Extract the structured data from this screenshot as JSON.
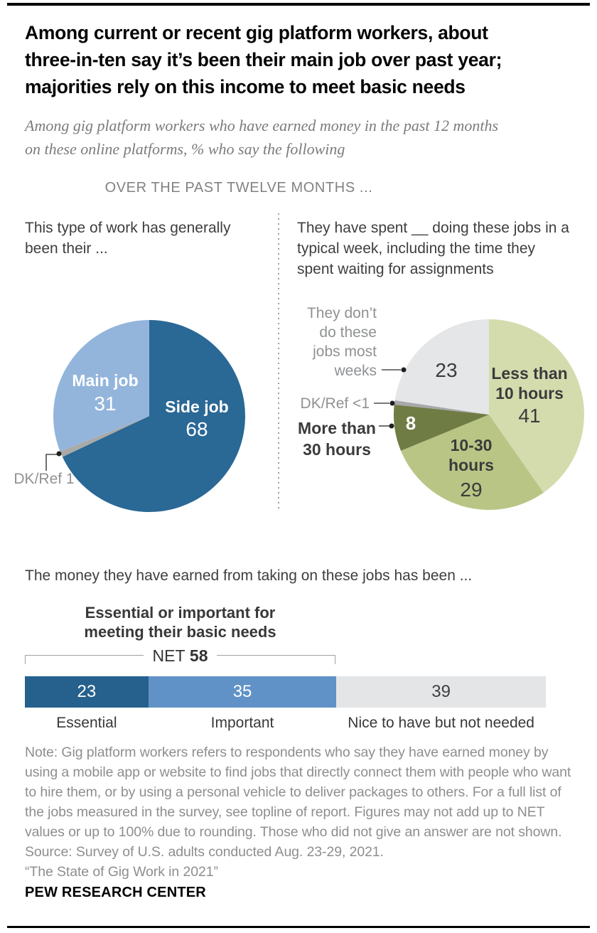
{
  "header": {
    "title_lines": [
      "Among current or recent gig platform workers, about",
      "three-in-ten say it’s been their main job over past year;",
      "majorities rely on this income to meet basic needs"
    ],
    "subtitle_lines": [
      "Among gig platform workers who have earned money in the past 12 months",
      "on these online platforms, % who say the following"
    ],
    "section_label": "OVER THE PAST TWELVE MONTHS ..."
  },
  "colors": {
    "pie_dark_blue": "#2a6896",
    "pie_light_blue": "#93b5dc",
    "bar_dark_blue": "#25618c",
    "bar_medium_blue": "#6092c7",
    "light_gray": "#e5e6e7",
    "gray_sliver": "#a7a8aa",
    "sage_light": "#d4dcae",
    "sage_medium": "#b9c585",
    "olive_dark": "#6f7c44"
  },
  "chart_data": [
    {
      "type": "pie",
      "title_lines": [
        "This type of work has generally",
        "been their ..."
      ],
      "start": "top",
      "direction": "clockwise",
      "slices": [
        {
          "label": "Side job",
          "value": 68,
          "display": "68",
          "color": "#2a6896"
        },
        {
          "label": "DK/Ref",
          "value": 1,
          "display": "1",
          "color": "#a9aaa8"
        },
        {
          "label": "Main job",
          "value": 31,
          "display": "31",
          "color": "#93b5dc"
        }
      ],
      "outside_label": "DK/Ref 1"
    },
    {
      "type": "pie",
      "title_lines": [
        "They have spent __ doing these jobs in a",
        "typical week, including the time they",
        "spent waiting for assignments"
      ],
      "start": "top",
      "direction": "clockwise",
      "slices": [
        {
          "label": "Less than 10 hours",
          "value": 41,
          "display": "41",
          "color": "#d4dcae"
        },
        {
          "label": "10-30 hours",
          "value": 29,
          "display": "29",
          "color": "#b9c585"
        },
        {
          "label": "More than 30 hours",
          "value": 8,
          "display": "8",
          "color": "#6f7c44"
        },
        {
          "label": "DK/Ref",
          "value": 0.75,
          "display": "<1",
          "color": "#a7a8aa"
        },
        {
          "label": "They don’t do these jobs most weeks",
          "value": 23,
          "display": "23",
          "color": "#e5e6e7"
        }
      ],
      "labels": {
        "less_than_lines": [
          "Less than",
          "10 hours"
        ],
        "mid_lines": [
          "10-30",
          "hours"
        ],
        "more_lines": [
          "More than",
          "30 hours"
        ],
        "dkref": "DK/Ref <1",
        "none_lines": [
          "They don’t",
          "do these",
          "jobs most",
          "weeks"
        ]
      }
    },
    {
      "type": "stacked_bar",
      "title": "The money they have earned from taking on these jobs has been ...",
      "net_heading_lines": [
        "Essential or important for",
        "meeting their basic needs"
      ],
      "net_label": "NET",
      "net_value": "58",
      "segments": [
        {
          "label": "Essential",
          "value": 23,
          "color": "#25618c",
          "text_color": "#ffffff"
        },
        {
          "label": "Important",
          "value": 35,
          "color": "#6092c7",
          "text_color": "#ffffff"
        },
        {
          "label": "Nice to have but not needed",
          "value": 39,
          "color": "#e4e5e6",
          "text_color": "#3f3f3f"
        }
      ]
    }
  ],
  "footer": {
    "note": "Note: Gig platform workers refers to respondents who say they have earned money by using a mobile app or website to find jobs that directly connect them with people who want to hire them, or by using a personal vehicle to deliver packages to others. For a full list of the jobs measured in the survey, see topline of report. Figures may not add up to NET values or up to 100% due to rounding. Those who did not give an answer are not shown.",
    "source": "Source: Survey of U.S. adults conducted Aug. 23-29, 2021.",
    "report": "“The State of Gig Work in 2021”",
    "brand": "PEW RESEARCH CENTER"
  }
}
